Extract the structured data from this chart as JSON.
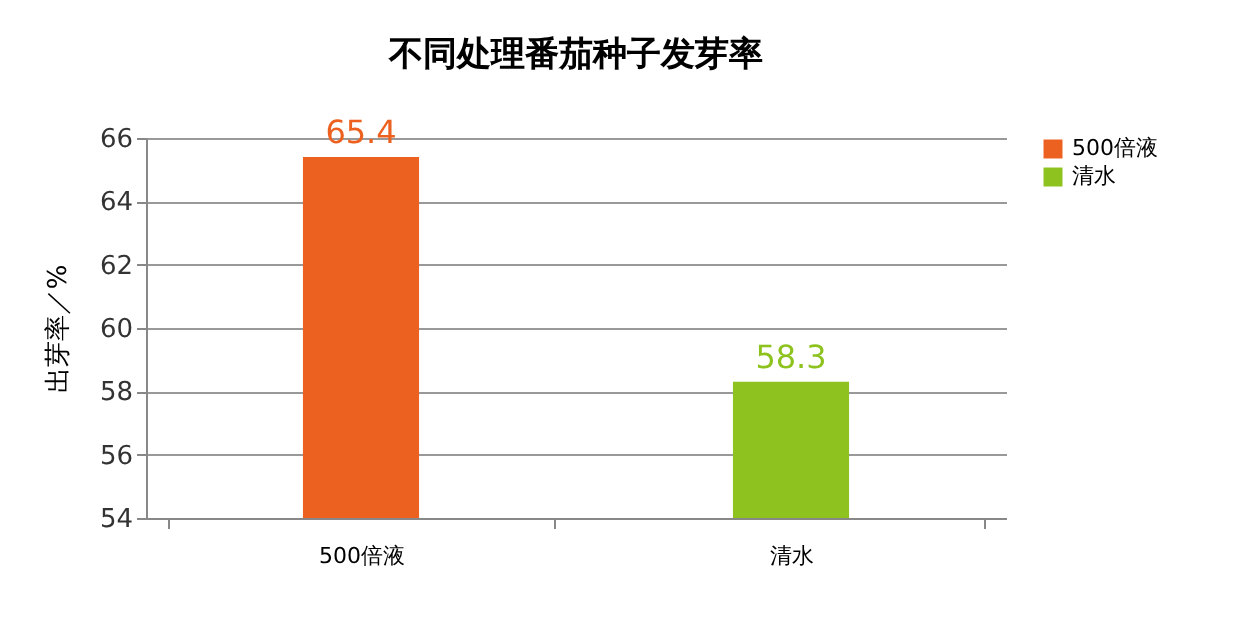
{
  "chart_data": {
    "type": "bar",
    "title": "不同处理番茄种子发芽率",
    "ylabel": "出芽率／%",
    "categories": [
      "500倍液",
      "清水"
    ],
    "series": [
      {
        "name": "500倍液",
        "color": "#ec6120",
        "values": [
          65.4,
          null
        ]
      },
      {
        "name": "清水",
        "color": "#8dc21f",
        "values": [
          null,
          58.3
        ]
      }
    ],
    "ylim": [
      54,
      66
    ],
    "yticks": [
      54,
      56,
      58,
      60,
      62,
      64,
      66
    ],
    "grid": "y",
    "legend": "right",
    "data_labels": true
  }
}
